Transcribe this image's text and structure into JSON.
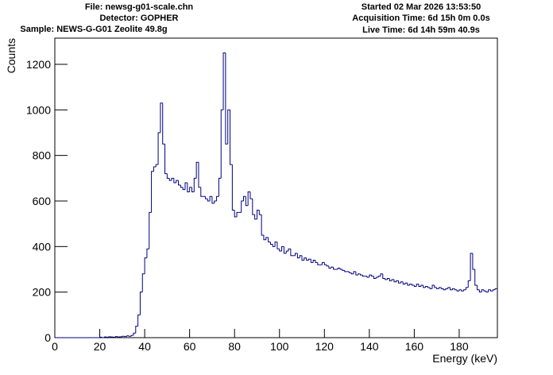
{
  "chart_data": {
    "type": "histogram",
    "header_left": [
      "File: newsg-g01-scale.chn",
      "Detector: GOPHER",
      "Sample: NEWS-G-G01 Zeolite 49.8g"
    ],
    "header_right": [
      "Started 02 Mar 2026 13:53:50",
      "Acquisition Time: 6d 15h 0m 0.0s",
      "Live Time: 6d 14h 59m 40.9s"
    ],
    "x_label": "Energy (keV)",
    "y_label": "Counts",
    "color": "#000080",
    "bins": [
      0,
      1,
      2,
      3,
      4,
      5,
      6,
      7,
      8,
      9,
      10,
      11,
      12,
      13,
      14,
      15,
      16,
      17,
      18,
      19,
      20,
      21,
      22,
      23,
      24,
      25,
      26,
      27,
      28,
      29,
      30,
      31,
      32,
      33,
      34,
      35,
      36,
      37,
      38,
      39,
      40,
      41,
      42,
      43,
      44,
      45,
      46,
      47,
      48,
      49,
      50,
      51,
      52,
      53,
      54,
      55,
      56,
      57,
      58,
      59,
      60,
      61,
      62,
      63,
      64,
      65,
      66,
      67,
      68,
      69,
      70,
      71,
      72,
      73,
      74,
      75,
      76,
      77,
      78,
      79,
      80,
      81,
      82,
      83,
      84,
      85,
      86,
      87,
      88,
      89,
      90,
      91,
      92,
      93,
      94,
      95,
      96,
      97,
      98,
      99,
      100,
      101,
      102,
      103,
      104,
      105,
      106,
      107,
      108,
      109,
      110,
      111,
      112,
      113,
      114,
      115,
      116,
      117,
      118,
      119,
      120,
      121,
      122,
      123,
      124,
      125,
      126,
      127,
      128,
      129,
      130,
      131,
      132,
      133,
      134,
      135,
      136,
      137,
      138,
      139,
      140,
      141,
      142,
      143,
      144,
      145,
      146,
      147,
      148,
      149,
      150,
      151,
      152,
      153,
      154,
      155,
      156,
      157,
      158,
      159,
      160,
      161,
      162,
      163,
      164,
      165,
      166,
      167,
      168,
      169,
      170,
      171,
      172,
      173,
      174,
      175,
      176,
      177,
      178,
      179,
      180,
      181,
      182,
      183,
      184,
      185,
      186,
      187,
      188,
      189,
      190,
      191,
      192,
      193,
      194,
      195,
      196,
      197
    ],
    "values": [
      0,
      0,
      0,
      0,
      0,
      0,
      0,
      0,
      0,
      0,
      0,
      0,
      0,
      0,
      0,
      0,
      0,
      0,
      0,
      0,
      2,
      0,
      3,
      2,
      4,
      3,
      2,
      5,
      3,
      4,
      6,
      5,
      8,
      6,
      10,
      20,
      50,
      100,
      200,
      280,
      350,
      390,
      550,
      730,
      750,
      760,
      900,
      1030,
      850,
      720,
      700,
      690,
      700,
      680,
      690,
      670,
      660,
      650,
      680,
      640,
      660,
      640,
      700,
      770,
      660,
      620,
      620,
      610,
      600,
      620,
      590,
      600,
      620,
      700,
      1000,
      1250,
      850,
      1000,
      760,
      560,
      530,
      550,
      550,
      600,
      620,
      580,
      640,
      610,
      540,
      520,
      560,
      540,
      450,
      430,
      440,
      420,
      410,
      400,
      420,
      390,
      380,
      400,
      370,
      380,
      390,
      360,
      360,
      370,
      350,
      360,
      340,
      350,
      340,
      345,
      330,
      340,
      330,
      320,
      320,
      330,
      320,
      315,
      305,
      310,
      300,
      300,
      305,
      300,
      295,
      290,
      290,
      285,
      280,
      290,
      275,
      280,
      275,
      270,
      270,
      265,
      275,
      270,
      260,
      265,
      270,
      280,
      260,
      255,
      260,
      250,
      255,
      245,
      250,
      240,
      245,
      235,
      240,
      230,
      235,
      230,
      225,
      235,
      225,
      230,
      220,
      225,
      220,
      215,
      230,
      220,
      215,
      220,
      215,
      210,
      215,
      220,
      210,
      215,
      210,
      205,
      210,
      205,
      210,
      220,
      250,
      370,
      300,
      230,
      210,
      200,
      210,
      205,
      200,
      210,
      205,
      210,
      215
    ],
    "xlim": [
      0,
      197
    ],
    "ylim": [
      0,
      1315
    ],
    "xticks": [
      0,
      20,
      40,
      60,
      80,
      100,
      120,
      140,
      160,
      180
    ],
    "yticks": [
      0,
      200,
      400,
      600,
      800,
      1000,
      1200
    ]
  }
}
